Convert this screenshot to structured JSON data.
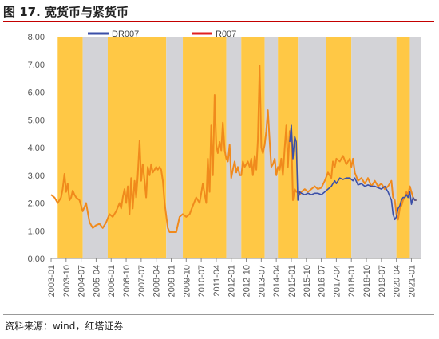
{
  "title": "图 17. 宽货币与紧货币",
  "source": "资料来源：wind，红塔证券",
  "colors": {
    "loose": "#FFC845",
    "tight": "#D3D3D7",
    "dr007": "#3B4FA8",
    "r007": "#E02020",
    "combined": "#F08A1C"
  },
  "chart_data": {
    "type": "line",
    "title": "",
    "xlabel": "",
    "ylabel": "",
    "ylim": [
      0,
      8
    ],
    "yticks": [
      "0.00",
      "1.00",
      "2.00",
      "3.00",
      "4.00",
      "5.00",
      "6.00",
      "7.00",
      "8.00"
    ],
    "xlim": [
      2003.0,
      2021.5
    ],
    "xticks": [
      "2003-01",
      "2003-10",
      "2004-07",
      "2005-04",
      "2006-01",
      "2006-10",
      "2007-07",
      "2008-04",
      "2009-01",
      "2009-10",
      "2010-07",
      "2011-04",
      "2012-01",
      "2012-10",
      "2013-07",
      "2014-04",
      "2015-01",
      "2015-10",
      "2016-07",
      "2017-04",
      "2018-01",
      "2018-10",
      "2019-07",
      "2020-04",
      "2021-01"
    ],
    "grid": false,
    "legend_position": "top",
    "bands": [
      {
        "kind": "loose",
        "start": 2003.33,
        "end": 2004.58
      },
      {
        "kind": "tight",
        "start": 2004.58,
        "end": 2005.83
      },
      {
        "kind": "loose",
        "start": 2005.83,
        "end": 2008.75
      },
      {
        "kind": "tight",
        "start": 2008.75,
        "end": 2009.58
      },
      {
        "kind": "loose",
        "start": 2009.58,
        "end": 2011.75
      },
      {
        "kind": "tight",
        "start": 2011.75,
        "end": 2012.5
      },
      {
        "kind": "loose",
        "start": 2012.5,
        "end": 2013.67
      },
      {
        "kind": "tight",
        "start": 2013.67,
        "end": 2014.33
      },
      {
        "kind": "loose",
        "start": 2014.33,
        "end": 2015.33
      },
      {
        "kind": "tight",
        "start": 2015.33,
        "end": 2016.75
      },
      {
        "kind": "loose",
        "start": 2016.75,
        "end": 2018.0
      },
      {
        "kind": "tight",
        "start": 2018.0,
        "end": 2020.25
      },
      {
        "kind": "loose",
        "start": 2020.25,
        "end": 2020.92
      },
      {
        "kind": "tight",
        "start": 2020.92,
        "end": 2021.5
      }
    ],
    "series": [
      {
        "name": "R007",
        "x": [
          2003.0,
          2003.17,
          2003.33,
          2003.5,
          2003.58,
          2003.67,
          2003.75,
          2003.83,
          2003.92,
          2004.0,
          2004.08,
          2004.17,
          2004.25,
          2004.42,
          2004.58,
          2004.75,
          2004.92,
          2005.08,
          2005.25,
          2005.42,
          2005.58,
          2005.75,
          2005.92,
          2006.08,
          2006.25,
          2006.42,
          2006.5,
          2006.58,
          2006.67,
          2006.75,
          2006.83,
          2006.92,
          2007.0,
          2007.08,
          2007.17,
          2007.25,
          2007.33,
          2007.42,
          2007.5,
          2007.58,
          2007.67,
          2007.75,
          2007.83,
          2007.92,
          2008.0,
          2008.08,
          2008.17,
          2008.25,
          2008.33,
          2008.42,
          2008.5,
          2008.58,
          2008.67,
          2008.83,
          2008.92,
          2009.0,
          2009.25,
          2009.42,
          2009.58,
          2009.75,
          2009.92,
          2010.08,
          2010.25,
          2010.42,
          2010.58,
          2010.75,
          2010.83,
          2010.92,
          2011.0,
          2011.08,
          2011.17,
          2011.25,
          2011.33,
          2011.42,
          2011.5,
          2011.58,
          2011.67,
          2011.75,
          2011.83,
          2011.92,
          2012.0,
          2012.08,
          2012.17,
          2012.25,
          2012.33,
          2012.42,
          2012.5,
          2012.58,
          2012.67,
          2012.75,
          2012.83,
          2012.92,
          2013.0,
          2013.08,
          2013.17,
          2013.25,
          2013.33,
          2013.42,
          2013.5,
          2013.58,
          2013.67,
          2013.75,
          2013.83,
          2013.92,
          2014.0,
          2014.08,
          2014.17,
          2014.25,
          2014.33,
          2014.42,
          2014.5,
          2014.58,
          2014.67,
          2014.75,
          2014.83,
          2014.92,
          2015.0,
          2015.08,
          2015.17,
          2015.25,
          2015.33,
          2015.42,
          2015.5,
          2015.67,
          2015.83,
          2016.0,
          2016.17,
          2016.33,
          2016.5,
          2016.67,
          2016.83,
          2017.0,
          2017.08,
          2017.17,
          2017.25,
          2017.42,
          2017.58,
          2017.75,
          2017.92,
          2018.0,
          2018.08,
          2018.17,
          2018.33,
          2018.5,
          2018.67,
          2018.83,
          2019.0,
          2019.17,
          2019.33,
          2019.5,
          2019.67,
          2019.83,
          2020.0,
          2020.08,
          2020.17,
          2020.25,
          2020.33,
          2020.42,
          2020.5,
          2020.58,
          2020.67,
          2020.75,
          2020.83,
          2020.92,
          2021.0,
          2021.08,
          2021.17,
          2021.25
        ],
        "y": [
          2.3,
          2.2,
          2.0,
          2.2,
          2.5,
          3.05,
          2.4,
          2.7,
          2.1,
          2.2,
          2.45,
          2.3,
          2.2,
          2.1,
          1.7,
          2.0,
          1.3,
          1.1,
          1.2,
          1.25,
          1.1,
          1.3,
          1.6,
          1.5,
          1.7,
          2.0,
          1.8,
          2.2,
          2.5,
          2.0,
          2.6,
          1.6,
          2.9,
          1.8,
          2.8,
          2.2,
          3.0,
          4.25,
          2.8,
          3.4,
          2.8,
          2.2,
          3.3,
          3.0,
          3.4,
          3.1,
          3.2,
          3.3,
          3.2,
          3.3,
          3.2,
          2.8,
          2.0,
          1.1,
          0.95,
          0.95,
          0.95,
          1.5,
          1.6,
          1.5,
          1.6,
          1.9,
          2.2,
          2.0,
          2.7,
          2.0,
          3.6,
          2.4,
          4.8,
          3.0,
          5.9,
          4.1,
          3.8,
          4.2,
          3.9,
          4.9,
          3.9,
          3.6,
          3.5,
          4.1,
          2.9,
          3.2,
          3.5,
          3.1,
          3.3,
          3.0,
          3.0,
          3.5,
          3.3,
          3.4,
          3.5,
          3.3,
          3.6,
          3.0,
          3.7,
          3.2,
          4.3,
          6.95,
          4.0,
          3.8,
          4.1,
          4.6,
          5.35,
          4.2,
          3.3,
          3.4,
          3.6,
          3.0,
          3.3,
          3.2,
          3.6,
          3.0,
          4.0,
          4.8,
          3.3,
          4.6,
          4.5,
          2.1,
          2.5,
          2.4,
          2.4,
          2.3,
          2.4,
          2.5,
          2.4,
          2.5,
          2.6,
          2.5,
          2.55,
          2.8,
          3.1,
          2.9,
          3.5,
          3.3,
          3.6,
          3.5,
          3.7,
          3.4,
          3.6,
          3.3,
          3.6,
          3.1,
          2.8,
          2.9,
          2.7,
          2.9,
          2.6,
          2.8,
          2.6,
          2.7,
          2.5,
          2.6,
          2.8,
          2.2,
          2.1,
          1.6,
          1.4,
          1.8,
          1.9,
          2.1,
          2.2,
          2.4,
          2.3,
          2.6,
          2.4,
          2.2,
          2.1,
          2.1
        ]
      },
      {
        "name": "DR007",
        "x": [
          2014.92,
          2015.0,
          2015.08,
          2015.17,
          2015.25,
          2015.33,
          2015.42,
          2015.5,
          2015.67,
          2015.83,
          2016.0,
          2016.17,
          2016.33,
          2016.5,
          2016.67,
          2016.83,
          2017.0,
          2017.08,
          2017.17,
          2017.25,
          2017.42,
          2017.58,
          2017.75,
          2017.92,
          2018.0,
          2018.08,
          2018.17,
          2018.33,
          2018.5,
          2018.67,
          2018.83,
          2019.0,
          2019.17,
          2019.33,
          2019.5,
          2019.67,
          2019.83,
          2020.0,
          2020.08,
          2020.17,
          2020.25,
          2020.33,
          2020.42,
          2020.5,
          2020.58,
          2020.67,
          2020.75,
          2020.83,
          2020.92,
          2021.0,
          2021.08,
          2021.17,
          2021.25
        ],
        "y": [
          4.2,
          4.8,
          3.6,
          4.4,
          4.2,
          2.1,
          2.4,
          2.35,
          2.3,
          2.35,
          2.3,
          2.35,
          2.35,
          2.3,
          2.4,
          2.5,
          2.6,
          2.7,
          2.8,
          2.7,
          2.9,
          2.85,
          2.9,
          2.9,
          2.85,
          2.8,
          2.9,
          2.65,
          2.7,
          2.6,
          2.65,
          2.6,
          2.6,
          2.55,
          2.5,
          2.6,
          2.4,
          2.1,
          1.6,
          1.4,
          1.5,
          1.8,
          1.9,
          2.1,
          2.2,
          2.2,
          2.3,
          2.2,
          2.4,
          1.95,
          2.2,
          2.1,
          2.1
        ]
      }
    ]
  }
}
